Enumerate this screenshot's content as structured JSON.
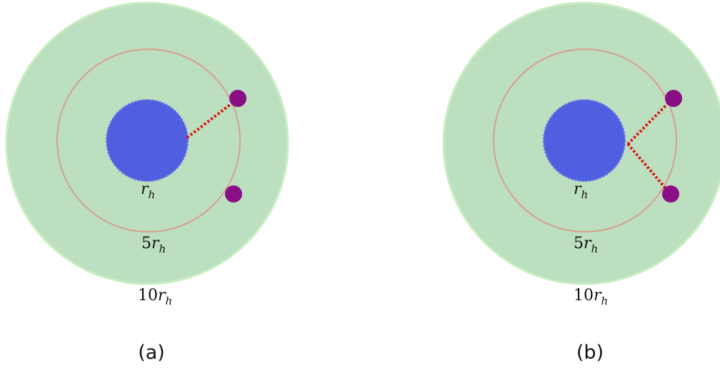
{
  "colors": {
    "outer_fill": "#bcdfbf",
    "outer_stroke": "#c7eec0",
    "middle_ring": "#d6a08e",
    "core_fill": "#4f5fe0",
    "core_stroke": "#6574ea",
    "particle": "#8a0f84",
    "link": "#dd1010"
  },
  "labels": {
    "core_radius": {
      "base": "r",
      "sub": "h"
    },
    "middle_radius": {
      "coef": "5",
      "base": "r",
      "sub": "h"
    },
    "outer_radius": {
      "coef": "10",
      "base": "r",
      "sub": "h"
    }
  },
  "panels": [
    {
      "caption": "(a)",
      "links": 1
    },
    {
      "caption": "(b)",
      "links": 2
    }
  ]
}
